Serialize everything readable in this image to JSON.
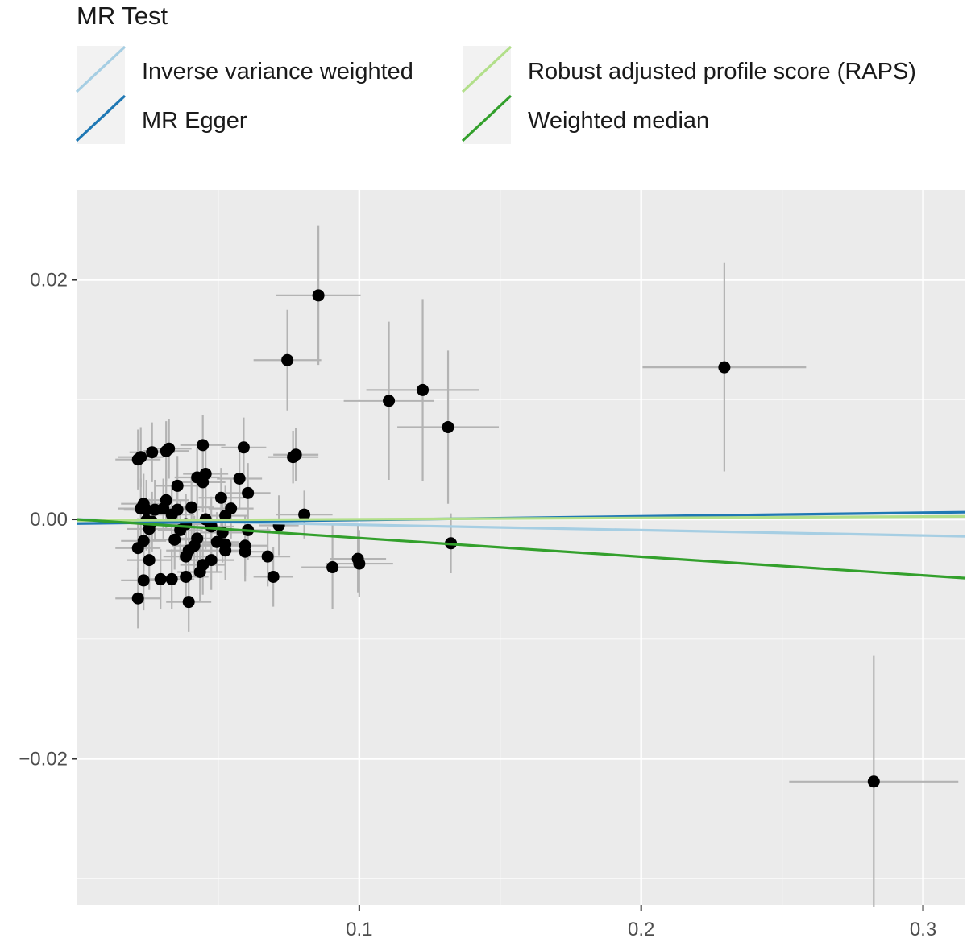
{
  "chart_data": {
    "type": "scatter",
    "title": "",
    "xlabel": "",
    "ylabel": "",
    "xlim": [
      0.0,
      0.315
    ],
    "ylim": [
      -0.0322,
      0.0275
    ],
    "grid": true,
    "legend_position": "top",
    "x_ticks": [
      {
        "value": 0.1,
        "label": "0.1"
      },
      {
        "value": 0.2,
        "label": "0.2"
      },
      {
        "value": 0.3,
        "label": "0.3"
      }
    ],
    "y_ticks": [
      {
        "value": 0.02,
        "label": "0.02"
      },
      {
        "value": 0.0,
        "label": "0.00"
      },
      {
        "value": -0.02,
        "label": "−0.02"
      }
    ],
    "x_minor": [
      0.05,
      0.15,
      0.25
    ],
    "y_minor": [
      0.01,
      -0.01,
      -0.03
    ],
    "legend": {
      "title": "MR Test",
      "items": [
        {
          "label": "Inverse variance weighted",
          "color": "#a6cee3"
        },
        {
          "label": "MR Egger",
          "color": "#1f78b4"
        },
        {
          "label": "Robust adjusted profile score (RAPS)",
          "color": "#b2df8a"
        },
        {
          "label": "Weighted median",
          "color": "#33a02c"
        }
      ]
    },
    "lines": [
      {
        "name": "Inverse variance weighted",
        "color": "#a6cee3",
        "intercept": 0.0,
        "slope": -0.0045
      },
      {
        "name": "MR Egger",
        "color": "#1f78b4",
        "intercept": -0.00035,
        "slope": 0.003
      },
      {
        "name": "Robust adjusted profile score (RAPS)",
        "color": "#b2df8a",
        "intercept": -0.0001,
        "slope": 0.0011
      },
      {
        "name": "Weighted median",
        "color": "#33a02c",
        "intercept": 0.0,
        "slope": -0.0156
      }
    ],
    "points": [
      {
        "x": 0.0855,
        "y": 0.0187,
        "xerr": 0.015,
        "yerr": 0.0058
      },
      {
        "x": 0.0745,
        "y": 0.0133,
        "xerr": 0.012,
        "yerr": 0.0042
      },
      {
        "x": 0.2295,
        "y": 0.0127,
        "xerr": 0.029,
        "yerr": 0.0087
      },
      {
        "x": 0.1225,
        "y": 0.0108,
        "xerr": 0.02,
        "yerr": 0.0076
      },
      {
        "x": 0.1105,
        "y": 0.0099,
        "xerr": 0.016,
        "yerr": 0.0066
      },
      {
        "x": 0.1315,
        "y": 0.0077,
        "xerr": 0.018,
        "yerr": 0.0064
      },
      {
        "x": 0.1325,
        "y": -0.002,
        "xerr": 0.0,
        "yerr": 0.0025
      },
      {
        "x": 0.2825,
        "y": -0.0219,
        "xerr": 0.03,
        "yerr": 0.0105
      },
      {
        "x": 0.0805,
        "y": 0.0004,
        "xerr": 0.01,
        "yerr": 0.002
      },
      {
        "x": 0.0905,
        "y": -0.004,
        "xerr": 0.011,
        "yerr": 0.0035
      },
      {
        "x": 0.0995,
        "y": -0.0033,
        "xerr": 0.01,
        "yerr": 0.0028
      },
      {
        "x": 0.1,
        "y": -0.0037,
        "xerr": 0.012,
        "yerr": 0.0028
      },
      {
        "x": 0.0765,
        "y": 0.0052,
        "xerr": 0.009,
        "yerr": 0.0022
      },
      {
        "x": 0.0775,
        "y": 0.0054,
        "xerr": 0.008,
        "yerr": 0.0022
      },
      {
        "x": 0.0715,
        "y": -0.0005,
        "xerr": 0.007,
        "yerr": 0.0025
      },
      {
        "x": 0.0695,
        "y": -0.0048,
        "xerr": 0.007,
        "yerr": 0.0025
      },
      {
        "x": 0.0675,
        "y": -0.0031,
        "xerr": 0.008,
        "yerr": 0.0025
      },
      {
        "x": 0.0605,
        "y": 0.0022,
        "xerr": 0.008,
        "yerr": 0.0025
      },
      {
        "x": 0.0575,
        "y": 0.0034,
        "xerr": 0.008,
        "yerr": 0.0025
      },
      {
        "x": 0.059,
        "y": 0.006,
        "xerr": 0.008,
        "yerr": 0.0025
      },
      {
        "x": 0.0525,
        "y": -0.0026,
        "xerr": 0.008,
        "yerr": 0.0025
      },
      {
        "x": 0.0525,
        "y": 0.0003,
        "xerr": 0.008,
        "yerr": 0.0025
      },
      {
        "x": 0.051,
        "y": 0.0018,
        "xerr": 0.008,
        "yerr": 0.0025
      },
      {
        "x": 0.0525,
        "y": -0.0021,
        "xerr": 0.008,
        "yerr": 0.0025
      },
      {
        "x": 0.0455,
        "y": 0.0038,
        "xerr": 0.008,
        "yerr": 0.0025
      },
      {
        "x": 0.0445,
        "y": 0.0031,
        "xerr": 0.008,
        "yerr": 0.0025
      },
      {
        "x": 0.0425,
        "y": 0.0035,
        "xerr": 0.008,
        "yerr": 0.0025
      },
      {
        "x": 0.0445,
        "y": 0.0062,
        "xerr": 0.008,
        "yerr": 0.0025
      },
      {
        "x": 0.0405,
        "y": 0.001,
        "xerr": 0.008,
        "yerr": 0.0025
      },
      {
        "x": 0.0355,
        "y": 0.0028,
        "xerr": 0.008,
        "yerr": 0.0025
      },
      {
        "x": 0.0355,
        "y": 0.0008,
        "xerr": 0.008,
        "yerr": 0.0025
      },
      {
        "x": 0.0315,
        "y": 0.0016,
        "xerr": 0.008,
        "yerr": 0.0025
      },
      {
        "x": 0.0325,
        "y": 0.0059,
        "xerr": 0.008,
        "yerr": 0.0025
      },
      {
        "x": 0.0315,
        "y": 0.0057,
        "xerr": 0.008,
        "yerr": 0.0025
      },
      {
        "x": 0.0275,
        "y": 0.0008,
        "xerr": 0.008,
        "yerr": 0.0025
      },
      {
        "x": 0.0265,
        "y": 0.0056,
        "xerr": 0.008,
        "yerr": 0.0025
      },
      {
        "x": 0.0215,
        "y": 0.005,
        "xerr": 0.008,
        "yerr": 0.0025
      },
      {
        "x": 0.0225,
        "y": 0.0052,
        "xerr": 0.008,
        "yerr": 0.0025
      },
      {
        "x": 0.0225,
        "y": 0.0009,
        "xerr": 0.008,
        "yerr": 0.0025
      },
      {
        "x": 0.0235,
        "y": 0.0013,
        "xerr": 0.008,
        "yerr": 0.0025
      },
      {
        "x": 0.0245,
        "y": 0.0008,
        "xerr": 0.008,
        "yerr": 0.0025
      },
      {
        "x": 0.0245,
        "y": -0.0001,
        "xerr": 0.008,
        "yerr": 0.0025
      },
      {
        "x": 0.0255,
        "y": -0.0008,
        "xerr": 0.008,
        "yerr": 0.0025
      },
      {
        "x": 0.0235,
        "y": -0.0018,
        "xerr": 0.008,
        "yerr": 0.0025
      },
      {
        "x": 0.0215,
        "y": -0.0024,
        "xerr": 0.008,
        "yerr": 0.0025
      },
      {
        "x": 0.0255,
        "y": -0.0034,
        "xerr": 0.008,
        "yerr": 0.0025
      },
      {
        "x": 0.0235,
        "y": -0.0051,
        "xerr": 0.008,
        "yerr": 0.0025
      },
      {
        "x": 0.0215,
        "y": -0.0066,
        "xerr": 0.008,
        "yerr": 0.0025
      },
      {
        "x": 0.0295,
        "y": -0.005,
        "xerr": 0.008,
        "yerr": 0.0025
      },
      {
        "x": 0.0335,
        "y": -0.005,
        "xerr": 0.008,
        "yerr": 0.0025
      },
      {
        "x": 0.0385,
        "y": -0.0048,
        "xerr": 0.008,
        "yerr": 0.0025
      },
      {
        "x": 0.0345,
        "y": -0.0017,
        "xerr": 0.008,
        "yerr": 0.0025
      },
      {
        "x": 0.0395,
        "y": -0.0026,
        "xerr": 0.008,
        "yerr": 0.0025
      },
      {
        "x": 0.0385,
        "y": -0.0031,
        "xerr": 0.008,
        "yerr": 0.0025
      },
      {
        "x": 0.0395,
        "y": -0.0069,
        "xerr": 0.008,
        "yerr": 0.0025
      },
      {
        "x": 0.0415,
        "y": -0.0022,
        "xerr": 0.008,
        "yerr": 0.0025
      },
      {
        "x": 0.0425,
        "y": -0.0016,
        "xerr": 0.008,
        "yerr": 0.0025
      },
      {
        "x": 0.0435,
        "y": -0.0044,
        "xerr": 0.008,
        "yerr": 0.0025
      },
      {
        "x": 0.0445,
        "y": -0.0038,
        "xerr": 0.008,
        "yerr": 0.0025
      },
      {
        "x": 0.0475,
        "y": -0.0034,
        "xerr": 0.008,
        "yerr": 0.0025
      },
      {
        "x": 0.0475,
        "y": -0.0006,
        "xerr": 0.008,
        "yerr": 0.0025
      },
      {
        "x": 0.0455,
        "y": 0.0,
        "xerr": 0.008,
        "yerr": 0.0025
      },
      {
        "x": 0.0365,
        "y": -0.0009,
        "xerr": 0.008,
        "yerr": 0.0025
      },
      {
        "x": 0.0385,
        "y": -0.0004,
        "xerr": 0.008,
        "yerr": 0.0025
      },
      {
        "x": 0.0335,
        "y": 0.0004,
        "xerr": 0.008,
        "yerr": 0.0025
      },
      {
        "x": 0.0265,
        "y": -0.0002,
        "xerr": 0.008,
        "yerr": 0.0025
      },
      {
        "x": 0.0305,
        "y": 0.0009,
        "xerr": 0.008,
        "yerr": 0.0025
      },
      {
        "x": 0.0515,
        "y": -0.0011,
        "xerr": 0.008,
        "yerr": 0.0025
      },
      {
        "x": 0.0495,
        "y": -0.0019,
        "xerr": 0.008,
        "yerr": 0.0025
      },
      {
        "x": 0.0595,
        "y": -0.0027,
        "xerr": 0.008,
        "yerr": 0.0025
      },
      {
        "x": 0.0595,
        "y": -0.0022,
        "xerr": 0.008,
        "yerr": 0.0025
      },
      {
        "x": 0.0605,
        "y": -0.0009,
        "xerr": 0.008,
        "yerr": 0.0025
      },
      {
        "x": 0.0545,
        "y": 0.0009,
        "xerr": 0.008,
        "yerr": 0.0025
      }
    ]
  }
}
